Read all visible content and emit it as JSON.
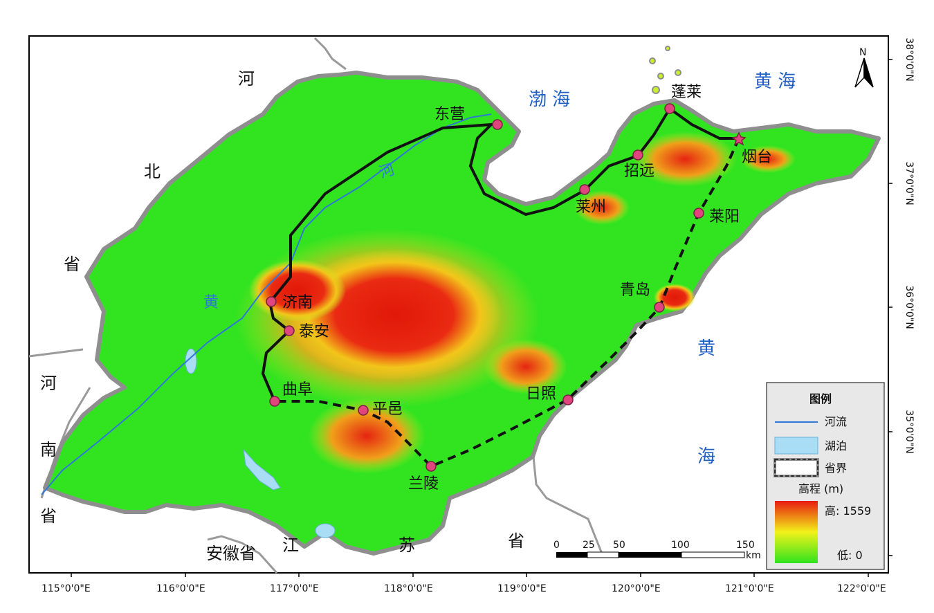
{
  "map": {
    "regions": {
      "hebei": [
        "河",
        "北",
        "省"
      ],
      "henan": [
        "河",
        "南",
        "省"
      ],
      "anhui": "安徽省",
      "jiangsu": [
        "江",
        "苏",
        "省"
      ]
    },
    "seas": {
      "bohai": "渤 海",
      "huanghai_ne": "黄 海",
      "huanghai_e": [
        "黄",
        "海"
      ]
    },
    "rivers": {
      "he": "河",
      "huang": "黄"
    },
    "cities": [
      "东营",
      "蓬莱",
      "烟台",
      "招远",
      "莱州",
      "莱阳",
      "青岛",
      "济南",
      "泰安",
      "曲阜",
      "平邑",
      "日照",
      "兰陵"
    ],
    "north_arrow": "N",
    "lon_ticks": [
      "115°0'0\"E",
      "116°0'0\"E",
      "117°0'0\"E",
      "118°0'0\"E",
      "119°0'0\"E",
      "120°0'0\"E",
      "121°0'0\"E",
      "122°0'0\"E"
    ],
    "lat_ticks": [
      "38°0'0\"N",
      "37°0'0\"N",
      "36°0'0\"N",
      "35°0'0\"N"
    ],
    "scale": {
      "values": [
        "0",
        "25",
        "50",
        "100",
        "150"
      ],
      "unit": "km"
    },
    "legend": {
      "title": "图例",
      "items": [
        "河流",
        "湖泊",
        "省界"
      ],
      "elevation_title": "高程 (m)",
      "high": "高: 1559",
      "low": "低: 0"
    },
    "colors": {
      "sea": "#ffffff",
      "river": "#2e79d6",
      "lake": "#a9dcf5",
      "low": "#2fe31e",
      "mid": "#f2f21a",
      "high": "#e81a10",
      "route": "#111111",
      "city": "#e0457e"
    }
  }
}
